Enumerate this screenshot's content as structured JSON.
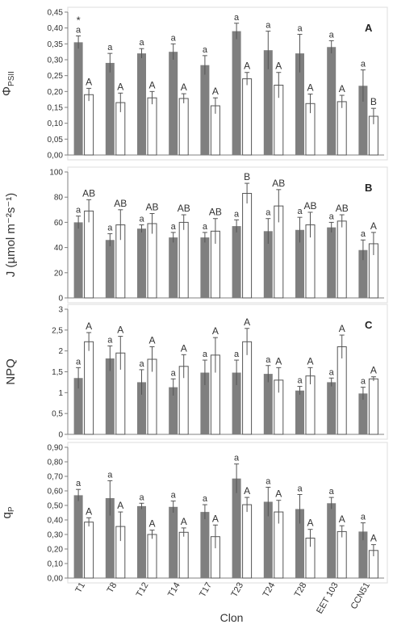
{
  "figure": {
    "xlabel": "Clon",
    "clones": [
      "T1",
      "T8",
      "T12",
      "T14",
      "T17",
      "T23",
      "T24",
      "T28",
      "EET 103",
      "CCN51"
    ]
  },
  "colors": {
    "filled": "#7f7f7f",
    "open": "#ffffff",
    "edge": "#555555",
    "axis": "#808080"
  },
  "chart_data": [
    {
      "type": "bar",
      "panel_label": "A",
      "ylabel": "ΦPSII",
      "ylabel_main": "Φ",
      "ylabel_sub": "PSII",
      "ylim": [
        0,
        0.45
      ],
      "yticks": [
        "0,00",
        "0,05",
        "0,10",
        "0,15",
        "0,20",
        "0,25",
        "0,30",
        "0,35",
        "0,40",
        "0,45"
      ],
      "categories": [
        "T1",
        "T8",
        "T12",
        "T14",
        "T17",
        "T23",
        "T24",
        "T28",
        "EET 103",
        "CCN51"
      ],
      "series": [
        {
          "values": [
            0.355,
            0.29,
            0.32,
            0.325,
            0.283,
            0.39,
            0.33,
            0.32,
            0.34,
            0.218
          ],
          "errors": [
            0.02,
            0.03,
            0.015,
            0.025,
            0.03,
            0.025,
            0.06,
            0.06,
            0.02,
            0.05
          ],
          "labels": [
            "a",
            "a",
            "a",
            "a",
            "a",
            "a",
            "a",
            "a",
            "a",
            "a"
          ]
        },
        {
          "values": [
            0.19,
            0.165,
            0.18,
            0.178,
            0.155,
            0.24,
            0.22,
            0.162,
            0.168,
            0.122
          ],
          "errors": [
            0.02,
            0.03,
            0.02,
            0.015,
            0.025,
            0.02,
            0.04,
            0.03,
            0.02,
            0.025
          ],
          "labels": [
            "A",
            "A",
            "A",
            "A",
            "A",
            "A",
            "A",
            "A",
            "A",
            "B"
          ]
        }
      ],
      "annotations": [
        {
          "text": "*",
          "category": "T1"
        }
      ]
    },
    {
      "type": "bar",
      "panel_label": "B",
      "ylabel": "J (µmol m⁻²s⁻¹)",
      "ylim": [
        0,
        100
      ],
      "yticks": [
        "0",
        "20",
        "40",
        "60",
        "80",
        "100"
      ],
      "categories": [
        "T1",
        "T8",
        "T12",
        "T14",
        "T17",
        "T23",
        "T24",
        "T28",
        "EET 103",
        "CCN51"
      ],
      "series": [
        {
          "values": [
            60,
            46,
            55,
            48,
            48,
            57,
            53,
            54,
            56,
            38
          ],
          "errors": [
            5,
            5,
            3,
            4,
            4,
            5,
            10,
            10,
            4,
            8
          ],
          "labels": [
            "a",
            "a",
            "a",
            "a",
            "a",
            "a",
            "a",
            "a",
            "a",
            "a"
          ]
        },
        {
          "values": [
            69,
            58,
            59,
            60,
            53,
            83,
            73,
            58,
            61,
            43
          ],
          "errors": [
            9,
            12,
            8,
            6,
            10,
            8,
            13,
            10,
            5,
            9
          ],
          "labels": [
            "AB",
            "AB",
            "AB",
            "AB",
            "AB",
            "B",
            "AB",
            "AB",
            "AB",
            "A"
          ]
        }
      ]
    },
    {
      "type": "bar",
      "panel_label": "C",
      "ylabel": "NPQ",
      "ylim": [
        0,
        3
      ],
      "yticks": [
        "0",
        "0,5",
        "1",
        "1,5",
        "2",
        "2,5",
        "3"
      ],
      "categories": [
        "T1",
        "T8",
        "T12",
        "T14",
        "T17",
        "T23",
        "T24",
        "T28",
        "EET 103",
        "CCN51"
      ],
      "series": [
        {
          "values": [
            1.35,
            1.82,
            1.25,
            1.13,
            1.48,
            1.48,
            1.45,
            1.05,
            1.25,
            0.98
          ],
          "errors": [
            0.25,
            0.3,
            0.3,
            0.2,
            0.3,
            0.3,
            0.2,
            0.1,
            0.1,
            0.15
          ],
          "labels": [
            "a",
            "a",
            "a",
            "a",
            "a",
            "a",
            "a",
            "a",
            "a",
            "a"
          ]
        },
        {
          "values": [
            2.22,
            1.95,
            1.8,
            1.63,
            1.9,
            2.22,
            1.3,
            1.4,
            2.1,
            1.33
          ],
          "errors": [
            0.22,
            0.4,
            0.3,
            0.28,
            0.42,
            0.32,
            0.3,
            0.2,
            0.28,
            0.05
          ],
          "labels": [
            "A",
            "A",
            "A",
            "A",
            "A",
            "A",
            "A",
            "A",
            "A",
            "A"
          ]
        }
      ]
    },
    {
      "type": "bar",
      "panel_label": "",
      "ylabel": "qP",
      "ylabel_main": "q",
      "ylabel_sub": "P",
      "ylim": [
        0,
        0.9
      ],
      "yticks": [
        "0,00",
        "0,10",
        "0,20",
        "0,30",
        "0,40",
        "0,50",
        "0,60",
        "0,70",
        "0,80",
        "0,90"
      ],
      "categories": [
        "T1",
        "T8",
        "T12",
        "T14",
        "T17",
        "T23",
        "T24",
        "T28",
        "EET 103",
        "CCN51"
      ],
      "series": [
        {
          "values": [
            0.57,
            0.55,
            0.495,
            0.49,
            0.455,
            0.685,
            0.525,
            0.475,
            0.515,
            0.32
          ],
          "errors": [
            0.04,
            0.12,
            0.02,
            0.04,
            0.05,
            0.1,
            0.1,
            0.1,
            0.04,
            0.06
          ],
          "labels": [
            "a",
            "a",
            "a",
            "a",
            "a",
            "a",
            "a",
            "a",
            "a",
            "a"
          ]
        },
        {
          "values": [
            0.385,
            0.355,
            0.3,
            0.315,
            0.285,
            0.505,
            0.455,
            0.275,
            0.32,
            0.19
          ],
          "errors": [
            0.03,
            0.1,
            0.03,
            0.03,
            0.08,
            0.05,
            0.08,
            0.06,
            0.04,
            0.04
          ],
          "labels": [
            "A",
            "A",
            "A",
            "A",
            "A",
            "A",
            "A",
            "A",
            "A",
            "A"
          ]
        }
      ]
    }
  ]
}
